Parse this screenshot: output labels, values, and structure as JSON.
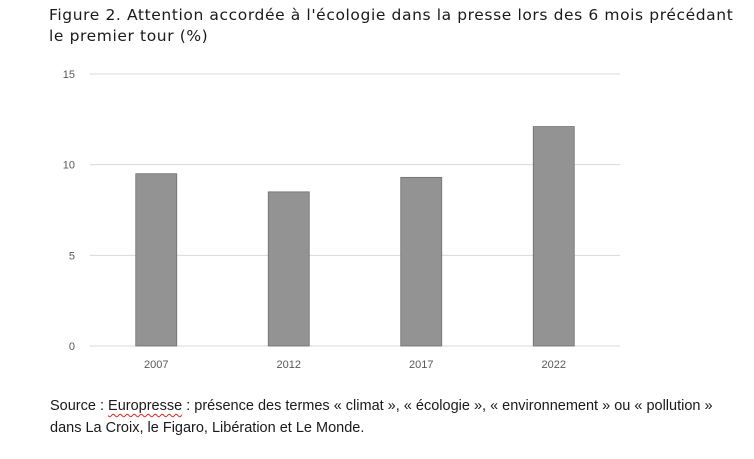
{
  "title": "Figure 2. Attention accordée à l'écologie dans la presse lors des 6 mois précédant le premier tour (%)",
  "source": {
    "prefix": "Source : ",
    "link": "Europresse",
    "suffix": " : présence des termes « climat », « écologie », « environnement » ou « pollution » dans La Croix, le Figaro, Libération et Le Monde."
  },
  "chart_data": {
    "type": "bar",
    "title": "Figure 2. Attention accordée à l'écologie dans la presse lors des 6 mois précédant le premier tour (%)",
    "categories": [
      "2007",
      "2012",
      "2017",
      "2022"
    ],
    "values": [
      9.5,
      8.5,
      9.3,
      12.1
    ],
    "yticks": [
      "0",
      "5",
      "10",
      "15"
    ],
    "ylim": [
      0,
      15
    ],
    "grid": true,
    "legend": "none",
    "bar_color": "#939393",
    "bar_edge_color": "#6e6e6e",
    "grid_color": "#d9d9d9",
    "label_color": "#595959"
  }
}
